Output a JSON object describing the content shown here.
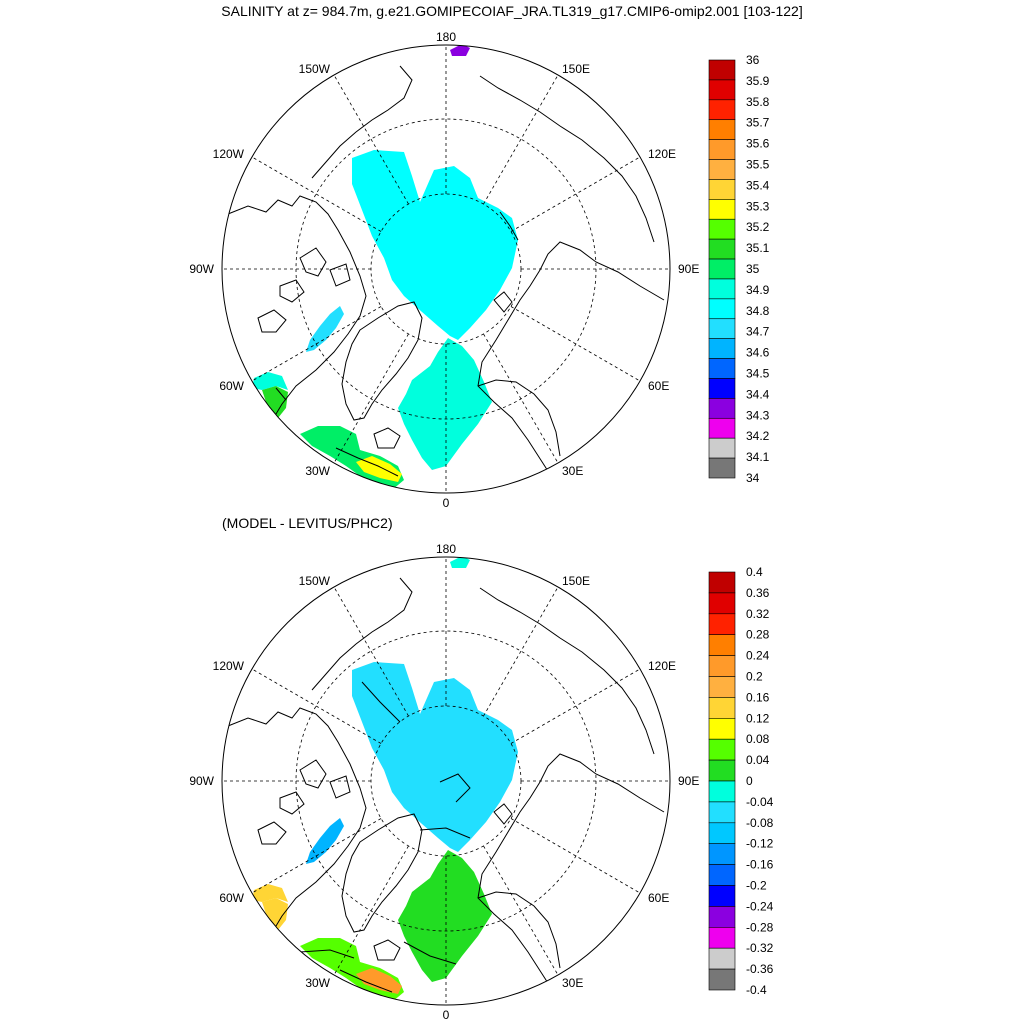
{
  "title": "SALINITY at z= 984.7m, g.e21.GOMIPECOIAF_JRA.TL319_g17.CMIP6-omip2.001 [103-122]",
  "subtitle": "(MODEL - LEVITUS/PHC2)",
  "longitude_labels": [
    "180",
    "150E",
    "120E",
    "90E",
    "60E",
    "30E",
    "0",
    "30W",
    "60W",
    "90W",
    "120W",
    "150W"
  ],
  "colors": {
    "land_outline": "#000000",
    "grid": "#000000",
    "background": "#ffffff"
  },
  "panels": [
    {
      "name": "salinity",
      "colorbar": {
        "labels": [
          "36",
          "35.9",
          "35.8",
          "35.7",
          "35.6",
          "35.5",
          "35.4",
          "35.3",
          "35.2",
          "35.1",
          "35",
          "34.9",
          "34.8",
          "34.7",
          "34.6",
          "34.5",
          "34.4",
          "34.3",
          "34.2",
          "34.1",
          "34"
        ],
        "colors": [
          "#c00000",
          "#e00000",
          "#ff2200",
          "#ff7f00",
          "#ff9a2a",
          "#ffb040",
          "#ffd535",
          "#ffff00",
          "#55ff00",
          "#22dd22",
          "#00ee66",
          "#00ffdd",
          "#00ffff",
          "#22dfff",
          "#00b4ff",
          "#0066ff",
          "#0000ff",
          "#8b00e0",
          "#ee00ee",
          "#cccccc",
          "#777777"
        ]
      },
      "fields": {
        "arctic_basin": "#00ffff",
        "nordic_seas": "#00ffdd",
        "baffin": "#22dfff",
        "labrador": "#00ffdd",
        "irminger_a": "#22dd22",
        "irminger_b": "#00ee66",
        "iceland_south": "#ffff00",
        "pacific_spot": "#8b00e0"
      }
    },
    {
      "name": "difference",
      "colorbar": {
        "labels": [
          "0.4",
          "0.36",
          "0.32",
          "0.28",
          "0.24",
          "0.2",
          "0.16",
          "0.12",
          "0.08",
          "0.04",
          "0",
          "-0.04",
          "-0.08",
          "-0.12",
          "-0.16",
          "-0.2",
          "-0.24",
          "-0.28",
          "-0.32",
          "-0.36",
          "-0.4"
        ],
        "colors": [
          "#c00000",
          "#e00000",
          "#ff2200",
          "#ff7f00",
          "#ff9a2a",
          "#ffb040",
          "#ffd535",
          "#ffff00",
          "#55ff00",
          "#22dd22",
          "#00ffdd",
          "#22dfff",
          "#00c8ff",
          "#0096ff",
          "#0066ff",
          "#0000ff",
          "#8b00e0",
          "#ee00ee",
          "#cccccc",
          "#777777"
        ]
      },
      "fields": {
        "arctic_basin": "#22dfff",
        "nordic_seas": "#22dd22",
        "baffin": "#00b4ff",
        "labrador": "#ffd535",
        "irminger_a": "#ffd535",
        "irminger_b": "#55ff00",
        "iceland_south": "#ff9a2a",
        "pacific_spot": "#00ffdd"
      }
    }
  ]
}
